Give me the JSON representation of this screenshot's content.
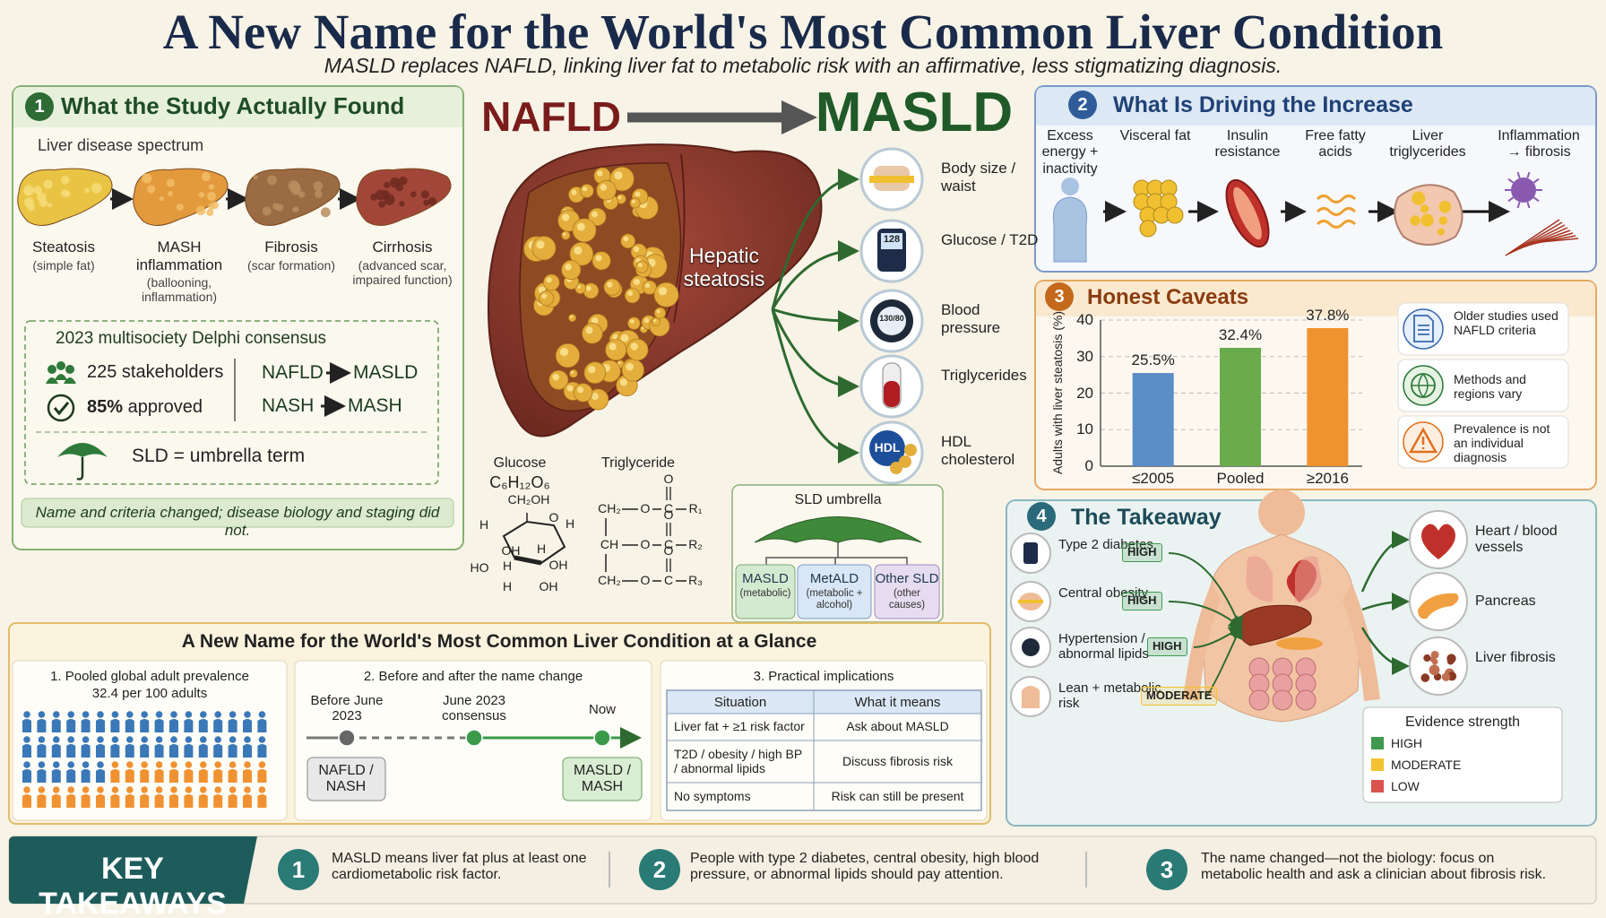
{
  "header": {
    "title": "A New Name for the World's Most Common Liver Condition",
    "subtitle": "MASLD replaces NAFLD, linking liver fat to metabolic risk with an affirmative, less stigmatizing diagnosis."
  },
  "study": {
    "number": "1",
    "title": "What the Study Actually Found",
    "spectrum_label": "Liver disease spectrum",
    "stages": [
      {
        "name": "Steatosis",
        "note": "(simple fat)"
      },
      {
        "name": "MASH inflammation",
        "note": "(ballooning, inflammation)"
      },
      {
        "name": "Fibrosis",
        "note": "(scar formation)"
      },
      {
        "name": "Cirrhosis",
        "note": "(advanced scar, impaired function)"
      }
    ],
    "consensus": {
      "title": "2023 multisociety Delphi consensus",
      "stakeholders": "225 stakeholders",
      "approved_value": "85%",
      "approved_label": "approved",
      "renames": [
        {
          "from": "NAFLD",
          "to": "MASLD"
        },
        {
          "from": "NASH",
          "to": "MASH"
        }
      ],
      "umbrella": "SLD = umbrella term"
    },
    "note": "Name and criteria changed; disease biology and staging did not."
  },
  "center": {
    "from": "NAFLD",
    "to": "MASLD",
    "liver_label": "Hepatic steatosis",
    "risks": [
      "Body size / waist",
      "Glucose / T2D",
      "Blood pressure",
      "Triglycerides",
      "HDL cholesterol"
    ],
    "glucose_meter": "128",
    "bp_meter": "130/80",
    "hdl_icon": "HDL",
    "glucose": {
      "label": "Glucose",
      "formula": "C₆H₁₂O₆",
      "atoms": [
        "CH₂OH",
        "O",
        "H",
        "H",
        "OH",
        "H",
        "H",
        "OH",
        "HO",
        "H",
        "OH"
      ]
    },
    "triglyceride": {
      "label": "Triglyceride",
      "carbonyl": "O",
      "rows": [
        [
          "CH₂",
          "O",
          "C",
          "R₁"
        ],
        [
          "CH",
          "O",
          "C",
          "R₂"
        ],
        [
          "CH₂",
          "O",
          "C",
          "R₃"
        ]
      ]
    },
    "umbrella": {
      "title": "SLD umbrella",
      "types": [
        {
          "name": "MASLD",
          "note": "(metabolic)"
        },
        {
          "name": "MetALD",
          "note": "(metabolic + alcohol)"
        },
        {
          "name": "Other SLD",
          "note": "(other causes)"
        }
      ]
    }
  },
  "driving": {
    "number": "2",
    "title": "What Is Driving the Increase",
    "steps": [
      "Excess energy + inactivity",
      "Visceral fat",
      "Insulin resistance",
      "Free fatty acids",
      "Liver triglycerides",
      "Inflammation → fibrosis"
    ]
  },
  "caveats": {
    "number": "3",
    "title": "Honest Caveats",
    "items": [
      "Older studies used NAFLD criteria",
      "Methods and regions vary",
      "Prevalence is not an individual diagnosis"
    ]
  },
  "chart_data": {
    "type": "bar",
    "ylabel": "Adults with liver steatosis (%)",
    "categories": [
      "≤2005",
      "Pooled",
      "≥2016"
    ],
    "values": [
      25.5,
      32.4,
      37.8
    ],
    "value_labels": [
      "25.5%",
      "32.4%",
      "37.8%"
    ],
    "colors": [
      "#5b8dc6",
      "#6aab4e",
      "#f0922e"
    ],
    "ylim": [
      0,
      40
    ],
    "yticks": [
      0,
      10,
      20,
      30,
      40
    ],
    "grid": true
  },
  "takeaway": {
    "number": "4",
    "title": "The Takeaway",
    "risks": [
      {
        "name": "Type 2 diabetes",
        "level": "HIGH"
      },
      {
        "name": "Central obesity",
        "level": "HIGH"
      },
      {
        "name": "Hypertension / abnormal lipids",
        "level": "HIGH"
      },
      {
        "name": "Lean + metabolic risk",
        "level": "MODERATE"
      }
    ],
    "organs": [
      "Heart / blood vessels",
      "Pancreas",
      "Liver fibrosis"
    ],
    "evidence": {
      "title": "Evidence strength",
      "levels": [
        {
          "name": "HIGH",
          "color": "#3f9a4f"
        },
        {
          "name": "MODERATE",
          "color": "#f2c230"
        },
        {
          "name": "LOW",
          "color": "#d9534f"
        }
      ]
    }
  },
  "glance": {
    "title": "A New Name for the World's Most Common Liver Condition at a Glance",
    "prevalence": {
      "title": "1. Pooled global adult prevalence",
      "value": "32.4 per 100 adults"
    },
    "timeline": {
      "title": "2. Before and after the name change",
      "points": [
        "Before June 2023",
        "June 2023 consensus",
        "Now"
      ],
      "before": "NAFLD / NASH",
      "after": "MASLD / MASH"
    },
    "implications": {
      "title": "3. Practical implications",
      "headers": [
        "Situation",
        "What it means"
      ],
      "rows": [
        [
          "Liver fat + ≥1 risk factor",
          "Ask about MASLD"
        ],
        [
          "T2D / obesity / high BP / abnormal lipids",
          "Discuss fibrosis risk"
        ],
        [
          "No symptoms",
          "Risk can still be present"
        ]
      ]
    }
  },
  "key": {
    "title": "KEY TAKEAWAYS",
    "items": [
      {
        "number": "1",
        "text": "MASLD means liver fat plus at least one cardiometabolic risk factor."
      },
      {
        "number": "2",
        "text": "People with type 2 diabetes, central obesity, high blood pressure, or abnormal lipids should pay attention."
      },
      {
        "number": "3",
        "text": "The name changed—not the biology: focus on metabolic health and ask a clinician about fibrosis risk."
      }
    ]
  }
}
